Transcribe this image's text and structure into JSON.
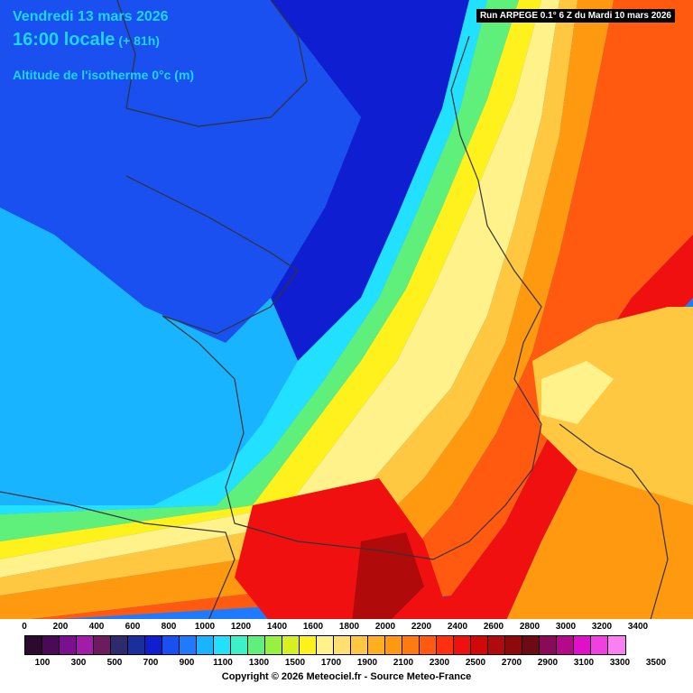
{
  "header": {
    "date": "Vendredi 13 mars 2026",
    "time": "16:00 locale",
    "lead": "(+ 81h)",
    "field": "Altitude de l'isotherme 0°c (m)",
    "run": "Run ARPEGE 0.1° 6 Z du Mardi 10 mars 2026"
  },
  "legend": {
    "top_labels": [
      "0",
      "200",
      "400",
      "600",
      "800",
      "1000",
      "1200",
      "1400",
      "1600",
      "1800",
      "2000",
      "2200",
      "2400",
      "2600",
      "2800",
      "3000",
      "3200",
      "3400"
    ],
    "bottom_labels": [
      "100",
      "300",
      "500",
      "700",
      "900",
      "1100",
      "1300",
      "1500",
      "1700",
      "1900",
      "2100",
      "2300",
      "2500",
      "2700",
      "2900",
      "3100",
      "3300",
      "3500"
    ],
    "colors": [
      "#2b0a2e",
      "#4a0a58",
      "#7a0f8f",
      "#a11ca8",
      "#6e1a5e",
      "#2d2a6e",
      "#1a2f9a",
      "#0f1ed0",
      "#1a4ff0",
      "#1e7bff",
      "#19b4ff",
      "#22e0ff",
      "#3ef0c8",
      "#5ef07a",
      "#98f040",
      "#d8f020",
      "#fff21c",
      "#fff28a",
      "#ffe070",
      "#ffc840",
      "#ffb01e",
      "#ff9a10",
      "#ff7a10",
      "#ff5a10",
      "#ff3010",
      "#f01010",
      "#d00808",
      "#b00a0a",
      "#8e0a0a",
      "#6e0a14",
      "#8a0a5a",
      "#b40a8a",
      "#e010c8",
      "#f040e0",
      "#f880f0"
    ],
    "copyright": "Copyright © 2026 Meteociel.fr - Source Meteo-France"
  }
}
